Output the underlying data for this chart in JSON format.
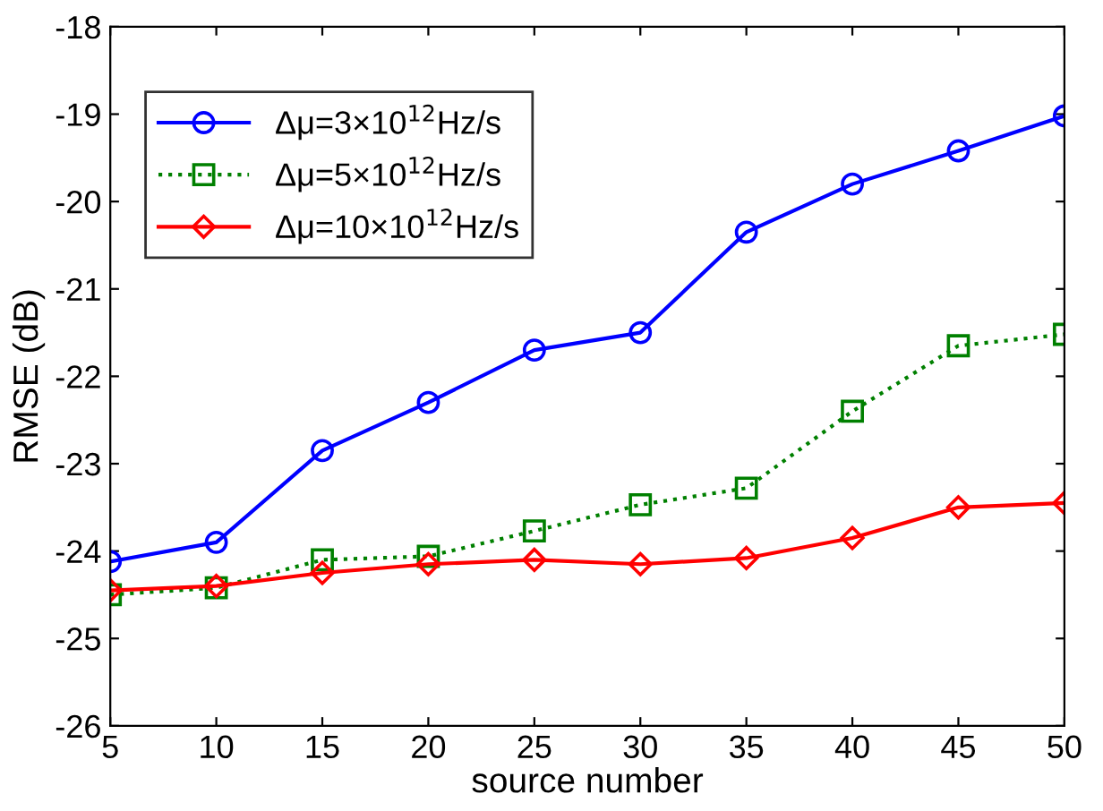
{
  "chart_data": {
    "type": "line",
    "xlabel": "source number",
    "ylabel": "RMSE (dB)",
    "x": [
      5,
      10,
      15,
      20,
      25,
      30,
      35,
      40,
      45,
      50
    ],
    "series": [
      {
        "name": "Δμ=3×10$^{12}$Hz/s",
        "color": "#0000ff",
        "marker": "circle",
        "line_style": "solid",
        "values": [
          -24.12,
          -23.9,
          -22.85,
          -22.3,
          -21.7,
          -21.5,
          -20.35,
          -19.8,
          -19.42,
          -19.02
        ]
      },
      {
        "name": "Δμ=5×10$^{12}$Hz/s",
        "color": "#008000",
        "marker": "square",
        "line_style": "dotted",
        "values": [
          -24.5,
          -24.42,
          -24.1,
          -24.06,
          -23.77,
          -23.47,
          -23.28,
          -22.4,
          -21.65,
          -21.52
        ]
      },
      {
        "name": "Δμ=10×10$^{12}$Hz/s",
        "color": "#ff0000",
        "marker": "diamond",
        "line_style": "solid",
        "values": [
          -24.45,
          -24.4,
          -24.25,
          -24.15,
          -24.1,
          -24.15,
          -24.08,
          -23.85,
          -23.5,
          -23.45
        ]
      }
    ],
    "xlim": [
      5,
      50
    ],
    "xticks": [
      5,
      10,
      15,
      20,
      25,
      30,
      35,
      40,
      45,
      50
    ],
    "ylim": [
      -26,
      -18
    ],
    "yticks": [
      -26,
      -25,
      -24,
      -23,
      -22,
      -21,
      -20,
      -19,
      -18
    ],
    "grid": false,
    "legend": "top left"
  }
}
